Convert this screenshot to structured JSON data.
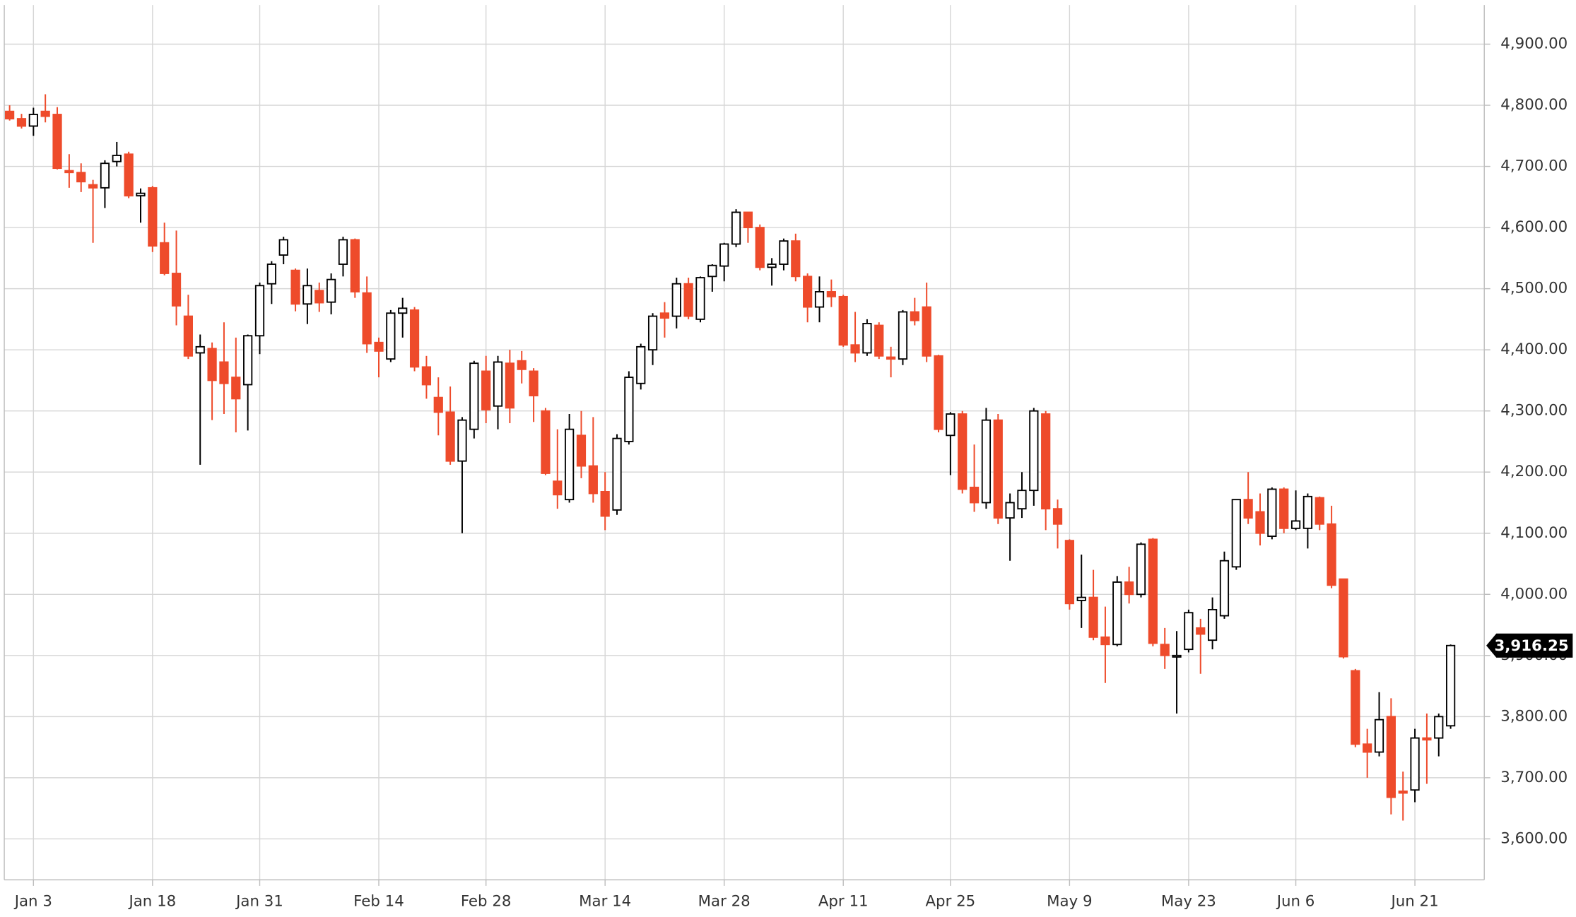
{
  "chart_data": {
    "type": "candlestick",
    "categories": [
      null,
      null,
      "Jan 3",
      null,
      null,
      null,
      null,
      null,
      null,
      null,
      null,
      null,
      "Jan 18",
      null,
      null,
      null,
      null,
      null,
      null,
      null,
      null,
      "Jan 31",
      null,
      null,
      null,
      null,
      null,
      null,
      null,
      null,
      null,
      "Feb 14",
      null,
      null,
      null,
      null,
      null,
      null,
      null,
      null,
      "Feb 28",
      null,
      null,
      null,
      null,
      null,
      null,
      null,
      null,
      null,
      "Mar 14",
      null,
      null,
      null,
      null,
      null,
      null,
      null,
      null,
      null,
      "Mar 28",
      null,
      null,
      null,
      null,
      null,
      null,
      null,
      null,
      null,
      "Apr 11",
      null,
      null,
      null,
      null,
      null,
      null,
      null,
      null,
      "Apr 25",
      null,
      null,
      null,
      null,
      null,
      null,
      null,
      null,
      null,
      "May 9",
      null,
      null,
      null,
      null,
      null,
      null,
      null,
      null,
      null,
      "May 23",
      null,
      null,
      null,
      null,
      null,
      null,
      null,
      null,
      "Jun 6",
      null,
      null,
      null,
      null,
      null,
      null,
      null,
      null,
      null,
      "Jun 21",
      null,
      null,
      null
    ],
    "values": [
      [
        4790,
        4800,
        4775,
        4778
      ],
      [
        4778,
        4786,
        4762,
        4766
      ],
      [
        4766,
        4796,
        4750,
        4785
      ],
      [
        4790,
        4818,
        4772,
        4782
      ],
      [
        4785,
        4797,
        4695,
        4697
      ],
      [
        4693,
        4720,
        4665,
        4690
      ],
      [
        4690,
        4705,
        4658,
        4675
      ],
      [
        4670,
        4678,
        4575,
        4665
      ],
      [
        4665,
        4710,
        4632,
        4705
      ],
      [
        4708,
        4740,
        4700,
        4718
      ],
      [
        4720,
        4724,
        4648,
        4652
      ],
      [
        4652,
        4664,
        4608,
        4656
      ],
      [
        4665,
        4668,
        4560,
        4570
      ],
      [
        4575,
        4608,
        4522,
        4525
      ],
      [
        4525,
        4595,
        4440,
        4472
      ],
      [
        4455,
        4490,
        4385,
        4390
      ],
      [
        4395,
        4425,
        4212,
        4405
      ],
      [
        4402,
        4412,
        4285,
        4350
      ],
      [
        4380,
        4445,
        4295,
        4345
      ],
      [
        4355,
        4420,
        4265,
        4320
      ],
      [
        4343,
        4425,
        4268,
        4423
      ],
      [
        4423,
        4510,
        4393,
        4505
      ],
      [
        4508,
        4545,
        4475,
        4540
      ],
      [
        4555,
        4585,
        4540,
        4580
      ],
      [
        4530,
        4533,
        4463,
        4475
      ],
      [
        4475,
        4533,
        4442,
        4505
      ],
      [
        4497,
        4510,
        4462,
        4477
      ],
      [
        4478,
        4525,
        4458,
        4515
      ],
      [
        4540,
        4585,
        4520,
        4580
      ],
      [
        4580,
        4582,
        4485,
        4495
      ],
      [
        4493,
        4520,
        4395,
        4410
      ],
      [
        4412,
        4420,
        4355,
        4398
      ],
      [
        4385,
        4465,
        4380,
        4460
      ],
      [
        4460,
        4485,
        4420,
        4468
      ],
      [
        4465,
        4470,
        4365,
        4372
      ],
      [
        4372,
        4390,
        4320,
        4343
      ],
      [
        4322,
        4355,
        4260,
        4298
      ],
      [
        4298,
        4340,
        4212,
        4218
      ],
      [
        4218,
        4290,
        4100,
        4285
      ],
      [
        4270,
        4382,
        4255,
        4378
      ],
      [
        4365,
        4390,
        4280,
        4302
      ],
      [
        4308,
        4390,
        4270,
        4380
      ],
      [
        4378,
        4400,
        4280,
        4305
      ],
      [
        4382,
        4398,
        4345,
        4368
      ],
      [
        4365,
        4370,
        4282,
        4325
      ],
      [
        4300,
        4305,
        4195,
        4198
      ],
      [
        4185,
        4270,
        4140,
        4163
      ],
      [
        4155,
        4295,
        4150,
        4270
      ],
      [
        4260,
        4300,
        4190,
        4210
      ],
      [
        4210,
        4290,
        4150,
        4165
      ],
      [
        4168,
        4200,
        4105,
        4128
      ],
      [
        4138,
        4262,
        4130,
        4255
      ],
      [
        4250,
        4365,
        4245,
        4355
      ],
      [
        4345,
        4410,
        4335,
        4405
      ],
      [
        4400,
        4460,
        4375,
        4455
      ],
      [
        4460,
        4478,
        4420,
        4452
      ],
      [
        4455,
        4518,
        4435,
        4508
      ],
      [
        4508,
        4518,
        4450,
        4455
      ],
      [
        4450,
        4520,
        4445,
        4518
      ],
      [
        4520,
        4540,
        4495,
        4538
      ],
      [
        4537,
        4575,
        4512,
        4573
      ],
      [
        4573,
        4630,
        4568,
        4625
      ],
      [
        4625,
        4625,
        4575,
        4600
      ],
      [
        4600,
        4605,
        4530,
        4535
      ],
      [
        4535,
        4550,
        4505,
        4540
      ],
      [
        4540,
        4582,
        4530,
        4578
      ],
      [
        4578,
        4590,
        4512,
        4520
      ],
      [
        4520,
        4525,
        4445,
        4470
      ],
      [
        4470,
        4520,
        4445,
        4495
      ],
      [
        4495,
        4515,
        4470,
        4487
      ],
      [
        4487,
        4490,
        4405,
        4408
      ],
      [
        4408,
        4462,
        4380,
        4395
      ],
      [
        4395,
        4450,
        4390,
        4443
      ],
      [
        4440,
        4445,
        4385,
        4390
      ],
      [
        4388,
        4405,
        4355,
        4385
      ],
      [
        4385,
        4465,
        4375,
        4462
      ],
      [
        4462,
        4485,
        4440,
        4448
      ],
      [
        4470,
        4510,
        4380,
        4390
      ],
      [
        4390,
        4392,
        4265,
        4270
      ],
      [
        4260,
        4298,
        4195,
        4295
      ],
      [
        4295,
        4300,
        4165,
        4172
      ],
      [
        4175,
        4245,
        4135,
        4150
      ],
      [
        4150,
        4305,
        4140,
        4285
      ],
      [
        4285,
        4295,
        4115,
        4125
      ],
      [
        4125,
        4165,
        4055,
        4150
      ],
      [
        4140,
        4200,
        4125,
        4170
      ],
      [
        4170,
        4305,
        4145,
        4300
      ],
      [
        4295,
        4300,
        4105,
        4140
      ],
      [
        4140,
        4155,
        4075,
        4115
      ],
      [
        4088,
        4090,
        3975,
        3985
      ],
      [
        3990,
        4065,
        3945,
        3995
      ],
      [
        3995,
        4040,
        3925,
        3930
      ],
      [
        3930,
        3980,
        3855,
        3918
      ],
      [
        3918,
        4030,
        3915,
        4020
      ],
      [
        4020,
        4045,
        3985,
        4000
      ],
      [
        4000,
        4085,
        3995,
        4082
      ],
      [
        4090,
        4092,
        3915,
        3920
      ],
      [
        3918,
        3945,
        3878,
        3900
      ],
      [
        3898,
        3940,
        3805,
        3900
      ],
      [
        3910,
        3975,
        3905,
        3970
      ],
      [
        3945,
        3960,
        3870,
        3935
      ],
      [
        3925,
        3995,
        3910,
        3975
      ],
      [
        3965,
        4070,
        3960,
        4055
      ],
      [
        4045,
        4155,
        4040,
        4155
      ],
      [
        4155,
        4200,
        4115,
        4125
      ],
      [
        4135,
        4165,
        4080,
        4100
      ],
      [
        4095,
        4175,
        4090,
        4172
      ],
      [
        4172,
        4175,
        4100,
        4108
      ],
      [
        4108,
        4170,
        4105,
        4120
      ],
      [
        4108,
        4165,
        4075,
        4160
      ],
      [
        4158,
        4160,
        4105,
        4115
      ],
      [
        4115,
        4145,
        4010,
        4015
      ],
      [
        4025,
        4025,
        3895,
        3898
      ],
      [
        3875,
        3878,
        3750,
        3755
      ],
      [
        3755,
        3780,
        3700,
        3742
      ],
      [
        3742,
        3840,
        3735,
        3795
      ],
      [
        3800,
        3830,
        3640,
        3668
      ],
      [
        3678,
        3710,
        3630,
        3675
      ],
      [
        3680,
        3780,
        3660,
        3765
      ],
      [
        3765,
        3805,
        3690,
        3762
      ],
      [
        3765,
        3805,
        3735,
        3800
      ],
      [
        3785,
        3918,
        3780,
        3916.25
      ]
    ],
    "colors": {
      "up": "#ffffff",
      "down": "#ee4b2b",
      "outline": "#000000"
    },
    "ylim": [
      3533,
      4964
    ],
    "yticks": [
      {
        "value": 3600,
        "label": "3,600.00"
      },
      {
        "value": 3700,
        "label": "3,700.00"
      },
      {
        "value": 3800,
        "label": "3,800.00"
      },
      {
        "value": 3900,
        "label": "3,900.00"
      },
      {
        "value": 4000,
        "label": "4,000.00"
      },
      {
        "value": 4100,
        "label": "4,100.00"
      },
      {
        "value": 4200,
        "label": "4,200.00"
      },
      {
        "value": 4300,
        "label": "4,300.00"
      },
      {
        "value": 4400,
        "label": "4,400.00"
      },
      {
        "value": 4500,
        "label": "4,500.00"
      },
      {
        "value": 4600,
        "label": "4,600.00"
      },
      {
        "value": 4700,
        "label": "4,700.00"
      },
      {
        "value": 4800,
        "label": "4,800.00"
      },
      {
        "value": 4900,
        "label": "4,900.00"
      }
    ],
    "last_label": {
      "value": 3916.25,
      "label": "3,916.25"
    },
    "grid": true,
    "y_axis_side": "right"
  }
}
